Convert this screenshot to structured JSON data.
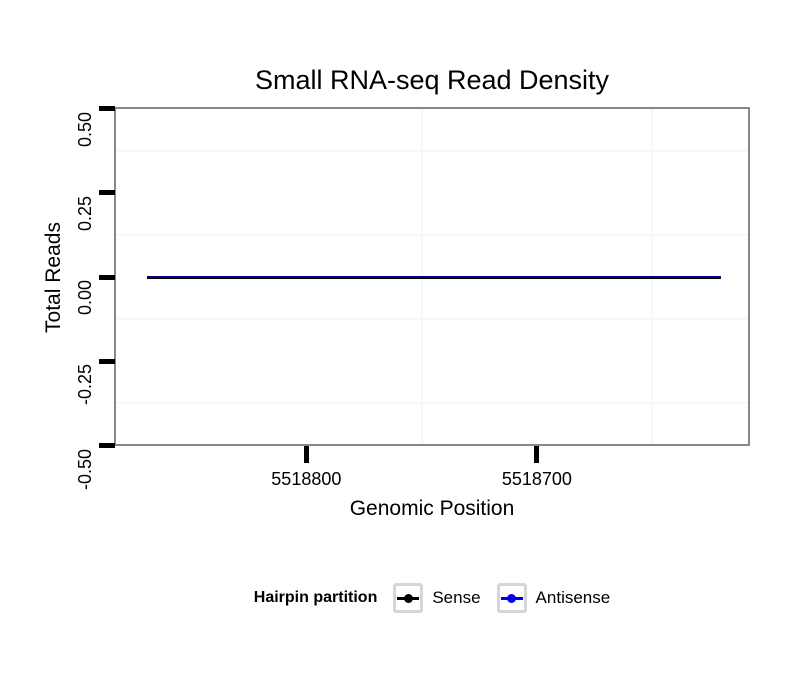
{
  "chart_data": {
    "type": "line",
    "title": "Small RNA-seq Read Density",
    "xlabel": "Genomic Position",
    "ylabel": "Total Reads",
    "x_reversed": true,
    "xlim": [
      5518883,
      5518608
    ],
    "ylim": [
      -0.5,
      0.5
    ],
    "x_ticks": [
      {
        "value": 5518800,
        "label": "5518800"
      },
      {
        "value": 5518700,
        "label": "5518700"
      }
    ],
    "x_minor_gridlines": [
      5518750,
      5518650
    ],
    "y_ticks": [
      {
        "value": 0.5,
        "label": "0.50"
      },
      {
        "value": 0.25,
        "label": "0.25"
      },
      {
        "value": 0,
        "label": "0.00"
      },
      {
        "value": -0.25,
        "label": "-0.25"
      },
      {
        "value": -0.5,
        "label": "-0.50"
      }
    ],
    "y_minor_gridlines": [
      0.375,
      0.125,
      -0.125,
      -0.375
    ],
    "grid": {
      "major": false,
      "minor": true
    },
    "series": [
      {
        "name": "Sense",
        "color": "#000000",
        "y": 0,
        "x_start": 5518869,
        "x_end": 5518620
      },
      {
        "name": "Antisense",
        "color": "#0000EE",
        "y": 0,
        "x_start": 5518869,
        "x_end": 5518620
      }
    ],
    "legend": {
      "title": "Hairpin partition",
      "position": "bottom",
      "items": [
        {
          "label": "Sense",
          "color": "#000000"
        },
        {
          "label": "Antisense",
          "color": "#0000EE"
        }
      ]
    },
    "colors": {
      "panel_border": "#888888",
      "gridline_minor": "#F7F7F7",
      "tick": "#000000",
      "text": "#000000",
      "legend_key_border": "#D6D6D6",
      "legend_key_fill": "#FFFFFF"
    }
  }
}
